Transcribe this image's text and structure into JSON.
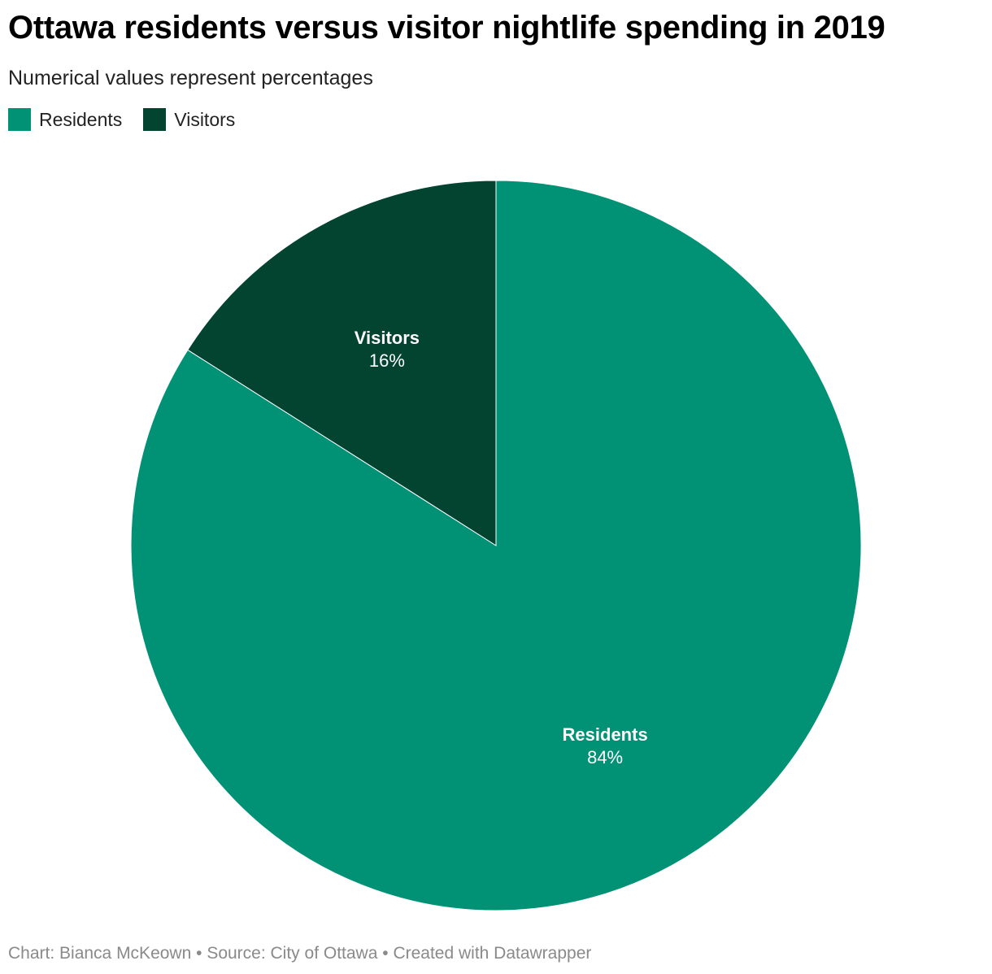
{
  "chart_data": {
    "type": "pie",
    "title": "Ottawa residents versus visitor nightlife spending in 2019",
    "subtitle": "Numerical values represent percentages",
    "legend_position": "top-left",
    "slices": [
      {
        "name": "Residents",
        "value": 84,
        "label": "84%",
        "color": "#019275"
      },
      {
        "name": "Visitors",
        "value": 16,
        "label": "16%",
        "color": "#024430"
      }
    ],
    "footer": {
      "credit": "Chart: Bianca McKeown",
      "separator_1": " • ",
      "source": "Source: City of Ottawa",
      "separator_2": " • ",
      "made_with": "Created with Datawrapper"
    }
  }
}
